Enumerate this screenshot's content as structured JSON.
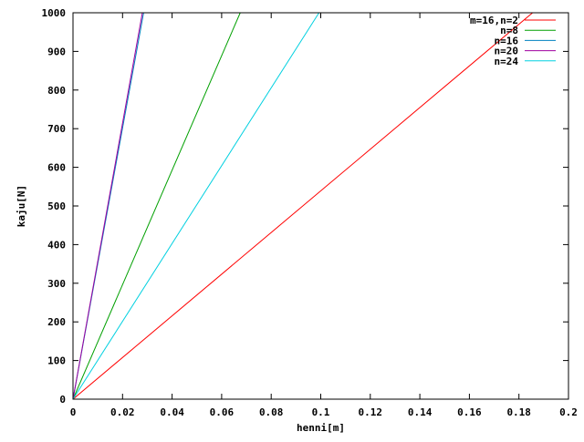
{
  "chart_data": {
    "type": "line",
    "title": "",
    "xlabel": "henni[m]",
    "ylabel": "kaju[N]",
    "xlim": [
      0,
      0.2
    ],
    "ylim": [
      0,
      1000
    ],
    "x_ticks": [
      0,
      0.02,
      0.04,
      0.06,
      0.08,
      0.1,
      0.12,
      0.14,
      0.16,
      0.18,
      0.2
    ],
    "x_tick_labels": [
      "0",
      "0.02",
      "0.04",
      "0.06",
      "0.08",
      "0.1",
      "0.12",
      "0.14",
      "0.16",
      "0.18",
      "0.2"
    ],
    "y_ticks": [
      0,
      100,
      200,
      300,
      400,
      500,
      600,
      700,
      800,
      900,
      1000
    ],
    "y_tick_labels": [
      "0",
      "100",
      "200",
      "300",
      "400",
      "500",
      "600",
      "700",
      "800",
      "900",
      "1000"
    ],
    "grid": false,
    "legend_position": "top-right",
    "series": [
      {
        "name": "m=16,n=2",
        "color": "#ff0000",
        "x": [
          0,
          0.1855
        ],
        "y": [
          0,
          1000
        ]
      },
      {
        "name": "n=8",
        "color": "#00a000",
        "x": [
          0,
          0.0675
        ],
        "y": [
          0,
          1000
        ]
      },
      {
        "name": "n=16",
        "color": "#0080c0",
        "x": [
          0,
          0.0285
        ],
        "y": [
          0,
          1000
        ]
      },
      {
        "name": "n=20",
        "color": "#a000a0",
        "x": [
          0,
          0.028
        ],
        "y": [
          0,
          1000
        ]
      },
      {
        "name": "n=24",
        "color": "#00d0e0",
        "x": [
          0,
          0.0993
        ],
        "y": [
          0,
          1000
        ]
      }
    ]
  }
}
